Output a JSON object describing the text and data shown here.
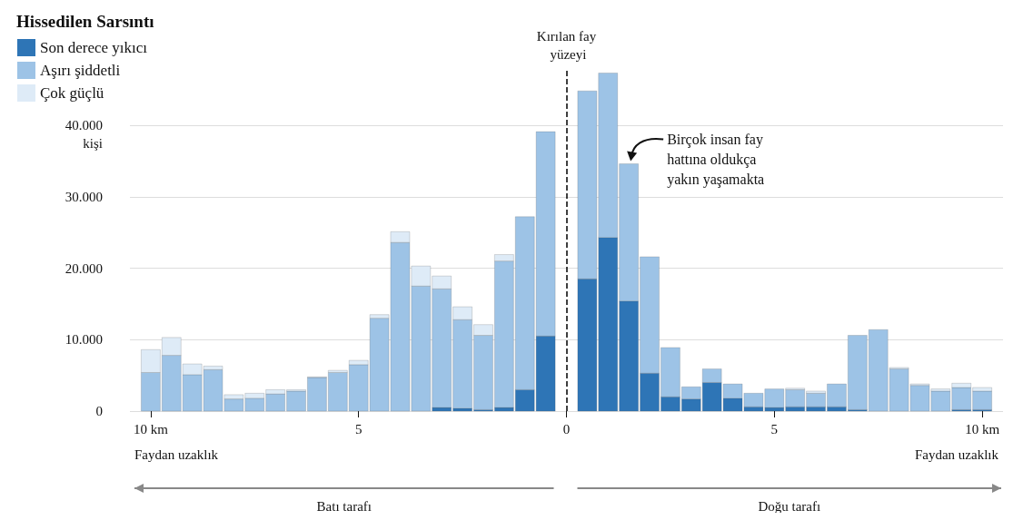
{
  "chart_data": {
    "type": "bar",
    "stacked": true,
    "legend_title": "Hissedilen Sarsıntı",
    "legend": "top left",
    "grid": "y",
    "xlabel": "Faydan uzaklık",
    "ylabel": "kişi",
    "x": [
      -10,
      -9.5,
      -9,
      -8.5,
      -8,
      -7.5,
      -7,
      -6.5,
      -6,
      -5.5,
      -5,
      -4.5,
      -4,
      -3.5,
      -3,
      -2.5,
      -2,
      -1.5,
      -1,
      -0.5,
      0.5,
      1,
      1.5,
      2,
      2.5,
      3,
      3.5,
      4,
      4.5,
      5,
      5.5,
      6,
      6.5,
      7,
      7.5,
      8,
      8.5,
      9,
      9.5,
      10
    ],
    "series": [
      {
        "name": "Son derece yıkıcı",
        "color": "#2e75b6",
        "values": [
          null,
          null,
          null,
          null,
          null,
          null,
          null,
          null,
          null,
          null,
          null,
          null,
          null,
          null,
          500,
          400,
          200,
          500,
          3000,
          10500,
          18500,
          24300,
          15400,
          5300,
          2000,
          1700,
          4000,
          1800,
          600,
          500,
          600,
          600,
          600,
          200,
          null,
          null,
          null,
          null,
          200,
          200
        ]
      },
      {
        "name": "Aşırı şiddetli",
        "color": "#9dc3e6",
        "values": [
          5400,
          7800,
          5100,
          5800,
          1700,
          1800,
          2400,
          2800,
          4700,
          5400,
          6500,
          13000,
          23600,
          17500,
          16600,
          12400,
          10400,
          20500,
          24200,
          28600,
          26300,
          23000,
          19200,
          16300,
          6900,
          1700,
          1900,
          2000,
          1900,
          2600,
          2400,
          1900,
          3200,
          10400,
          11400,
          5900,
          3600,
          2800,
          3100,
          2600
        ]
      },
      {
        "name": "Çok güçlü",
        "color": "#deebf7",
        "values": [
          3200,
          2500,
          1500,
          500,
          600,
          700,
          600,
          200,
          100,
          300,
          600,
          500,
          1500,
          2800,
          1800,
          1800,
          1500,
          900,
          null,
          null,
          null,
          null,
          null,
          null,
          null,
          null,
          null,
          null,
          null,
          null,
          200,
          300,
          null,
          null,
          null,
          200,
          200,
          300,
          600,
          500
        ]
      }
    ],
    "xlim": [
      -10.5,
      10.5
    ],
    "xticks": [
      {
        "value": -10,
        "label": "10 km"
      },
      {
        "value": -5,
        "label": "5"
      },
      0,
      5,
      {
        "value": 10,
        "label": "10 km"
      }
    ],
    "ylim": [
      0,
      48000
    ],
    "yticks": [
      0,
      {
        "value": 10000,
        "label": "10.000"
      },
      {
        "value": 20000,
        "label": "20.000"
      },
      {
        "value": 30000,
        "label": "30.000"
      },
      {
        "value": 40000,
        "label": "40.000"
      }
    ],
    "ref_lines": [
      {
        "axis": "x",
        "value": 0,
        "label": "Kırılan fay yüzeyi",
        "color": "#000000",
        "line_style": "dashed"
      }
    ],
    "annotations": [
      {
        "text": "Birçok insan fay hattına oldukça yakın yaşamakta",
        "x": 1.5,
        "y": 34600
      },
      "Faydan uzaklık",
      "Batı tarafı",
      "Doğu tarafı"
    ]
  }
}
